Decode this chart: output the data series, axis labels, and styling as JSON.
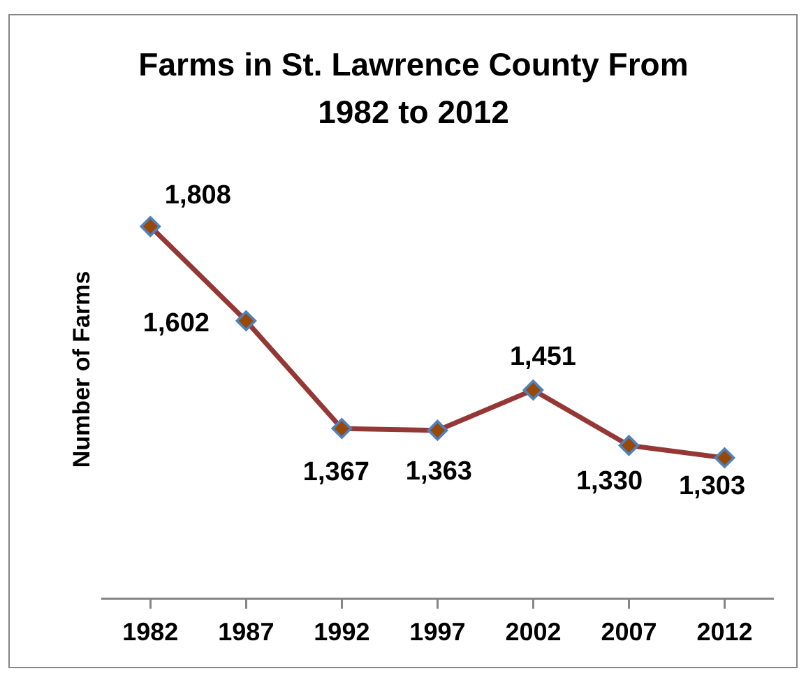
{
  "chart_data": {
    "type": "line",
    "title": "Farms in St. Lawrence County From 1982 to 2012",
    "ylabel": "Number of Farms",
    "categories": [
      "1982",
      "1987",
      "1992",
      "1997",
      "2002",
      "2007",
      "2012"
    ],
    "series": [
      {
        "color": "#953735",
        "values": [
          1808,
          1602,
          1367,
          1363,
          1451,
          1330,
          1303
        ],
        "value_labels": [
          "1,808",
          "1,602",
          "1,367",
          "1,363",
          "1,451",
          "1,330",
          "1,303"
        ]
      }
    ],
    "marker": "diamond",
    "line_style": "solid",
    "tick_labels": "x"
  }
}
